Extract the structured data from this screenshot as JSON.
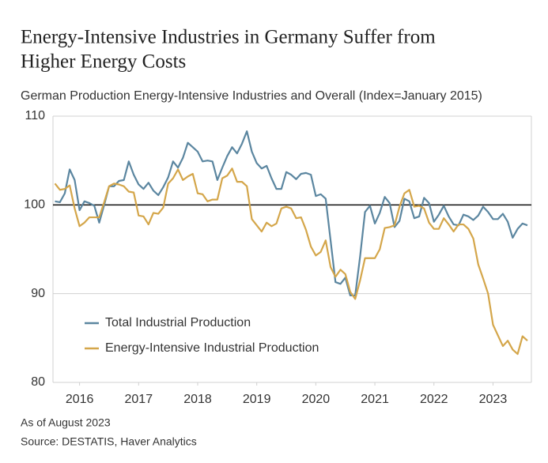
{
  "chart_data": {
    "type": "line",
    "title": [
      "Energy-Intensive Industries in Germany Suffer from",
      "Higher Energy Costs"
    ],
    "subtitle": "German Production Energy-Intensive Industries and Overall (Index=January 2015)",
    "notes": [
      "As of August 2023",
      "Source: DESTATIS, Haver Analytics"
    ],
    "x": [
      2015.583,
      2015.667,
      2015.75,
      2015.833,
      2015.917,
      2016,
      2016.083,
      2016.167,
      2016.25,
      2016.333,
      2016.417,
      2016.5,
      2016.583,
      2016.667,
      2016.75,
      2016.833,
      2016.917,
      2017,
      2017.083,
      2017.167,
      2017.25,
      2017.333,
      2017.417,
      2017.5,
      2017.583,
      2017.667,
      2017.75,
      2017.833,
      2017.917,
      2018,
      2018.083,
      2018.167,
      2018.25,
      2018.333,
      2018.417,
      2018.5,
      2018.583,
      2018.667,
      2018.75,
      2018.833,
      2018.917,
      2019,
      2019.083,
      2019.167,
      2019.25,
      2019.333,
      2019.417,
      2019.5,
      2019.583,
      2019.667,
      2019.75,
      2019.833,
      2019.917,
      2020,
      2020.083,
      2020.167,
      2020.25,
      2020.333,
      2020.417,
      2020.5,
      2020.583,
      2020.667,
      2020.75,
      2020.833,
      2020.917,
      2021,
      2021.083,
      2021.167,
      2021.25,
      2021.333,
      2021.417,
      2021.5,
      2021.583,
      2021.667,
      2021.75,
      2021.833,
      2021.917,
      2022,
      2022.083,
      2022.167,
      2022.25,
      2022.333,
      2022.417,
      2022.5,
      2022.583,
      2022.667,
      2022.75,
      2022.833,
      2022.917,
      2023,
      2023.083,
      2023.167,
      2023.25,
      2023.333,
      2023.417,
      2023.5,
      2023.583
    ],
    "series": [
      {
        "name": "Total Industrial Production",
        "color": "#5b86a0",
        "values": [
          100.4,
          100.3,
          101.3,
          104.0,
          102.8,
          99.4,
          100.4,
          100.2,
          99.9,
          98.0,
          100.0,
          102.1,
          102.1,
          102.7,
          102.8,
          104.9,
          103.4,
          102.3,
          101.8,
          102.5,
          101.6,
          101.1,
          102.0,
          103.1,
          104.9,
          104.2,
          105.3,
          107.0,
          106.5,
          106.0,
          104.9,
          105.0,
          104.9,
          102.8,
          104.2,
          105.5,
          106.5,
          105.8,
          106.9,
          108.3,
          106.0,
          104.7,
          104.1,
          104.4,
          103.0,
          101.8,
          101.8,
          103.7,
          103.4,
          102.9,
          103.5,
          103.6,
          103.4,
          101.0,
          101.2,
          100.7,
          96.0,
          91.3,
          91.1,
          91.8,
          89.8,
          89.8,
          94.2,
          99.2,
          99.9,
          97.9,
          99.1,
          100.9,
          100.2,
          97.5,
          98.2,
          100.7,
          100.4,
          98.5,
          98.7,
          100.8,
          100.2,
          98.1,
          98.9,
          99.9,
          98.7,
          97.8,
          97.7,
          98.9,
          98.7,
          98.3,
          98.8,
          99.8,
          99.2,
          98.4,
          98.4,
          99.0,
          98.1,
          96.3,
          97.3,
          97.9,
          97.7
        ]
      },
      {
        "name": "Energy-Intensive Industrial Production",
        "color": "#d4a64a",
        "values": [
          102.4,
          101.7,
          101.8,
          102.2,
          99.6,
          97.6,
          98.0,
          98.6,
          98.6,
          98.6,
          100.3,
          102.1,
          102.4,
          102.3,
          102.1,
          101.5,
          101.4,
          98.8,
          98.7,
          97.8,
          99.1,
          99.0,
          99.7,
          102.4,
          103.0,
          104.0,
          102.8,
          103.2,
          103.5,
          101.3,
          101.2,
          100.4,
          100.6,
          100.6,
          103.0,
          103.3,
          104.1,
          102.6,
          102.6,
          102.1,
          98.4,
          97.7,
          97.0,
          98.0,
          97.6,
          97.9,
          99.6,
          99.8,
          99.6,
          98.5,
          98.6,
          97.2,
          95.3,
          94.3,
          94.7,
          96.0,
          93.0,
          91.9,
          92.7,
          92.2,
          90.2,
          89.4,
          91.5,
          94.0,
          94.0,
          94.0,
          95.0,
          97.4,
          97.5,
          97.7,
          99.8,
          101.3,
          101.7,
          99.8,
          99.9,
          99.6,
          98.0,
          97.3,
          97.3,
          98.5,
          97.8,
          97.0,
          97.8,
          97.8,
          97.3,
          96.2,
          93.3,
          91.7,
          90.0,
          86.5,
          85.3,
          84.1,
          84.7,
          83.7,
          83.2,
          85.2,
          84.7
        ]
      }
    ],
    "xlim": [
      2015.55,
      2023.65
    ],
    "xticks": [
      2016,
      2017,
      2018,
      2019,
      2020,
      2021,
      2022,
      2023
    ],
    "ylim": [
      80,
      110
    ],
    "yticks": [
      80,
      90,
      100,
      110
    ],
    "reference_line": 100,
    "grid": true,
    "legend": "lower-left"
  }
}
